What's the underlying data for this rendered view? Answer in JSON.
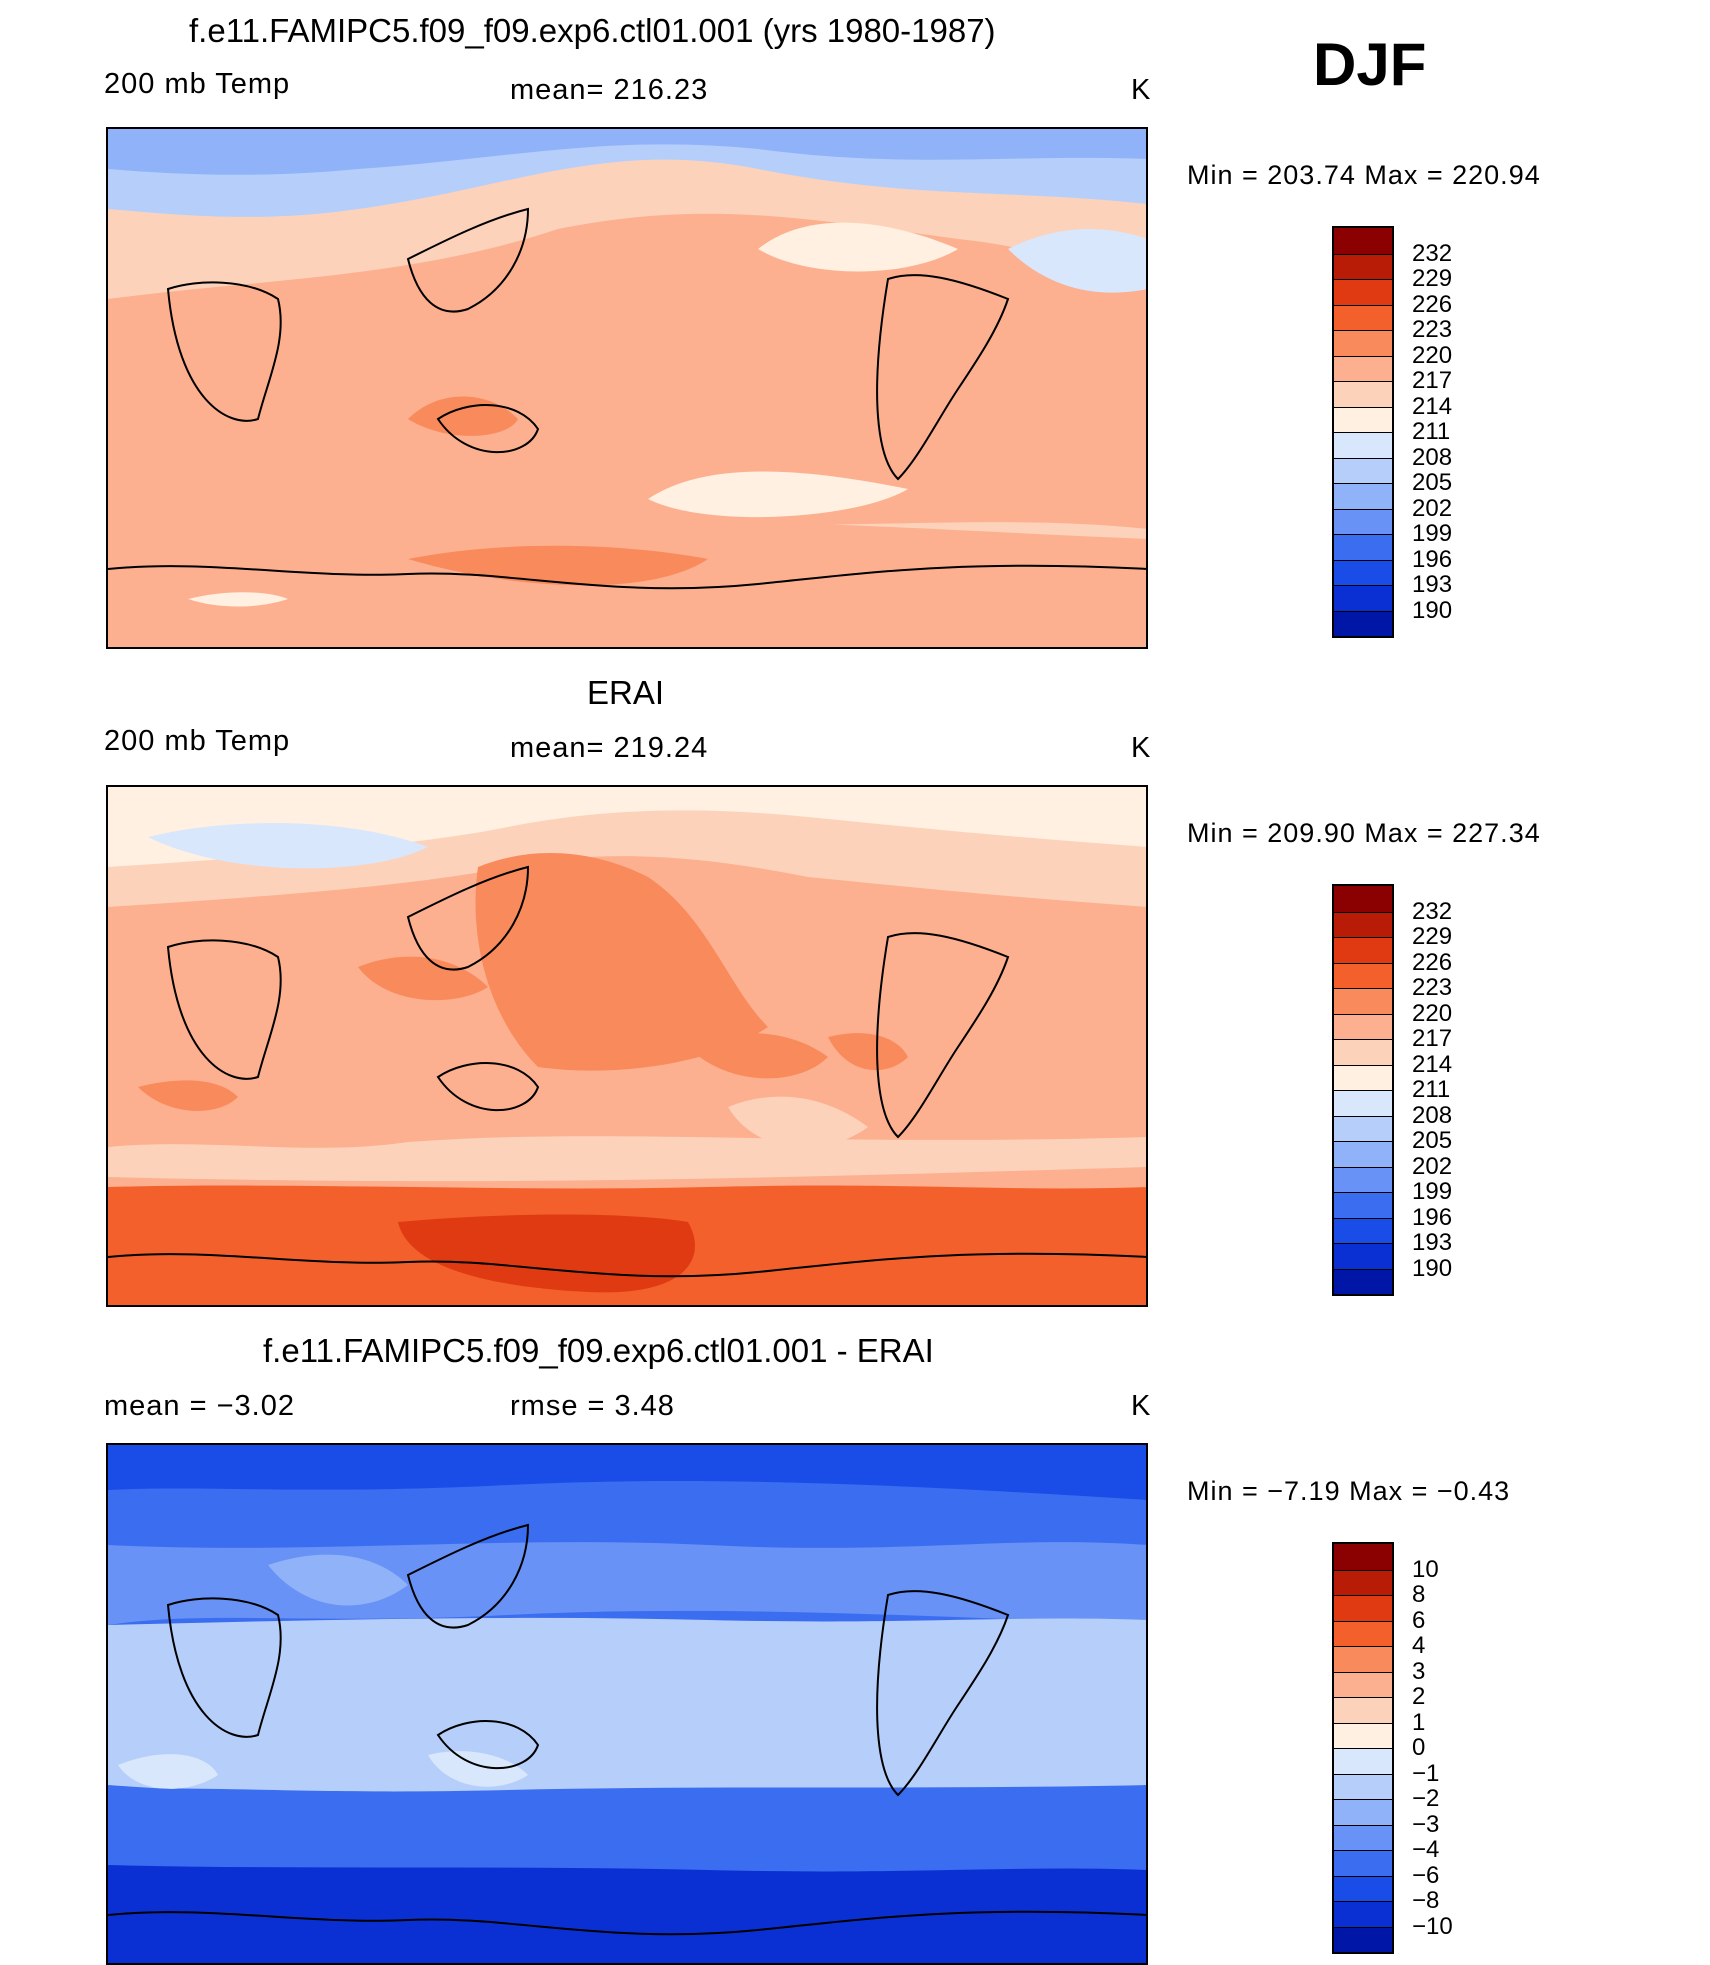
{
  "season": "DJF",
  "colors": {
    "temp_scale": [
      "#00006a",
      "#0016a6",
      "#0a30d4",
      "#1a4ce8",
      "#3b6df0",
      "#6892f5",
      "#90b2f8",
      "#b6cffa",
      "#d8e7fc",
      "#fff0e2",
      "#fdd2bb",
      "#fcb08f",
      "#f98a5c",
      "#f3602c",
      "#e03a12",
      "#b81c07",
      "#8b0000"
    ],
    "diff_scale": [
      "#00006a",
      "#0016a6",
      "#0a30d4",
      "#1a4ce8",
      "#3b6df0",
      "#6892f5",
      "#90b2f8",
      "#b6cffa",
      "#d8e7fc",
      "#fff0e2",
      "#fdd2bb",
      "#fcb08f",
      "#f98a5c",
      "#f3602c",
      "#e03a12",
      "#b81c07",
      "#8b0000"
    ]
  },
  "panels": [
    {
      "title": "f.e11.FAMIPC5.f09_f09.exp6.ctl01.001 (yrs 1980-1987)",
      "left_label": "200 mb Temp",
      "center_label": "mean=  216.23",
      "units": "K",
      "minmax": "Min  =  203.74  Max  =  220.94",
      "levels": [
        "232",
        "229",
        "226",
        "223",
        "220",
        "217",
        "214",
        "211",
        "208",
        "205",
        "202",
        "199",
        "196",
        "193",
        "190"
      ]
    },
    {
      "title": "ERAI",
      "left_label": "200 mb Temp",
      "center_label": "mean=  219.24",
      "units": "K",
      "minmax": "Min  =  209.90  Max  =  227.34",
      "levels": [
        "232",
        "229",
        "226",
        "223",
        "220",
        "217",
        "214",
        "211",
        "208",
        "205",
        "202",
        "199",
        "196",
        "193",
        "190"
      ]
    },
    {
      "title": "f.e11.FAMIPC5.f09_f09.exp6.ctl01.001 - ERAI",
      "left_label": "mean  =     −3.02",
      "center_label": "rmse  =     3.48",
      "units": "K",
      "minmax": "Min  =    −7.19  Max  =    −0.43",
      "levels": [
        "10",
        "8",
        "6",
        "4",
        "3",
        "2",
        "1",
        "0",
        "−1",
        "−2",
        "−3",
        "−4",
        "−6",
        "−8",
        "−10"
      ]
    }
  ]
}
